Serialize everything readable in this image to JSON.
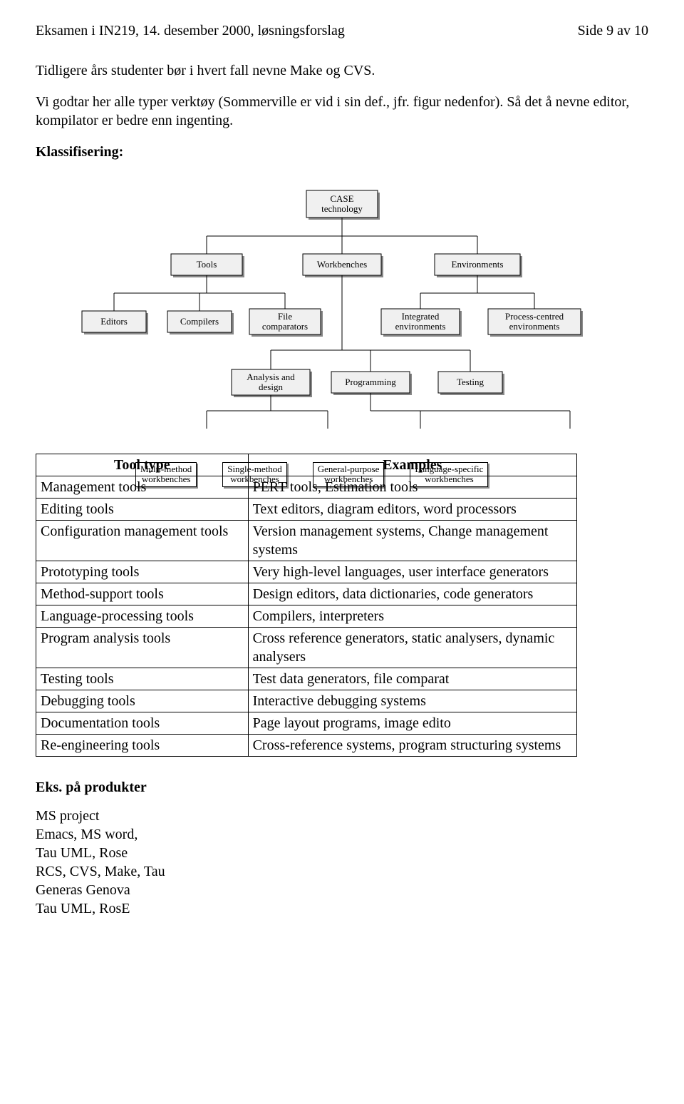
{
  "header": {
    "left": "Eksamen i IN219, 14. desember 2000, løsningsforslag",
    "right": "Side 9 av 10"
  },
  "paragraphs": {
    "p1": "Tidligere års studenter bør i hvert fall nevne Make og CVS.",
    "p2": "Vi godtar her alle typer verktøy (Sommerville er vid i sin def., jfr. figur nedenfor). Så det å nevne editor, kompilator er bedre enn ingenting.",
    "klass": "Klassifisering:"
  },
  "diagram": {
    "root": "CASE\ntechnology",
    "level2": [
      "Tools",
      "Workbenches",
      "Environments"
    ],
    "tools_children": [
      "Editors",
      "Compilers",
      "File\ncomparators"
    ],
    "env_children": [
      "Integrated\nenvironments",
      "Process-centred\nenvironments"
    ],
    "wb_children": [
      "Analysis and\ndesign",
      "Programming",
      "Testing"
    ],
    "wb_bottom": [
      "Multi-method\nworkbenches",
      "Single-method\nworkbenches",
      "General-purpose\nworkbenches",
      "Language-specific\nworkbenches"
    ],
    "box_fill": "#f0f0f0",
    "box_stroke": "#000000",
    "shadow_color": "#888888",
    "line_color": "#000000",
    "font_size": 13
  },
  "table": {
    "headers": [
      "Tool type",
      "Examples"
    ],
    "rows": [
      [
        "Management tools",
        "PERT tools, Estimation tools"
      ],
      [
        "Editing tools",
        "Text editors, diagram editors, word processors"
      ],
      [
        "Configuration management tools",
        "Version management systems, Change management systems"
      ],
      [
        "Prototyping tools",
        "Very high-level languages, user interface generators"
      ],
      [
        "Method-support tools",
        "Design editors, data dictionaries, code generators"
      ],
      [
        "Language-processing tools",
        "Compilers, interpreters"
      ],
      [
        "Program analysis tools",
        "Cross reference generators, static analysers, dynamic analysers"
      ],
      [
        "Testing tools",
        "Test data generators, file comparat"
      ],
      [
        "Debugging tools",
        "Interactive debugging systems"
      ],
      [
        "Documentation tools",
        "Page layout programs, image edito"
      ],
      [
        "Re-engineering tools",
        "Cross-reference systems, program structuring systems"
      ]
    ],
    "col1_width": 290,
    "col2_width": 460
  },
  "products": {
    "heading": "Eks. på produkter",
    "items": [
      "MS project",
      "Emacs, MS word,",
      "Tau UML, Rose",
      "RCS, CVS, Make, Tau",
      "Generas Genova",
      "Tau UML, RosE"
    ]
  }
}
